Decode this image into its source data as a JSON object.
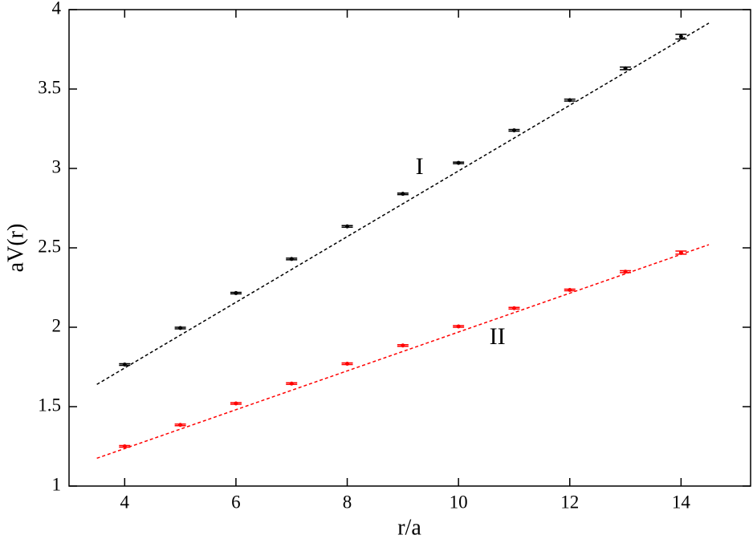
{
  "chart_data": {
    "type": "scatter",
    "xlabel": "r/a",
    "ylabel": "aV(r)",
    "xlim": [
      3,
      15.25
    ],
    "ylim": [
      1,
      4
    ],
    "xticks": [
      4,
      6,
      8,
      10,
      12,
      14
    ],
    "yticks": [
      1,
      1.5,
      2,
      2.5,
      3,
      3.5,
      4
    ],
    "series": [
      {
        "name": "I",
        "color": "#000000",
        "x": [
          4,
          5,
          6,
          7,
          8,
          9,
          10,
          11,
          12,
          13,
          14
        ],
        "values": [
          1.765,
          1.995,
          2.215,
          2.43,
          2.635,
          2.84,
          3.035,
          3.24,
          3.43,
          3.63,
          3.83
        ],
        "errors": [
          0.005,
          0.005,
          0.005,
          0.005,
          0.005,
          0.005,
          0.005,
          0.005,
          0.006,
          0.008,
          0.015
        ],
        "fit": {
          "x": [
            3.5,
            14.5
          ],
          "values": [
            1.64,
            3.915
          ]
        },
        "label_at": {
          "x": 9.3,
          "y": 3.0
        }
      },
      {
        "name": "II",
        "color": "#ff0000",
        "x": [
          4,
          5,
          6,
          7,
          8,
          9,
          10,
          11,
          12,
          13,
          14
        ],
        "values": [
          1.25,
          1.385,
          1.52,
          1.645,
          1.77,
          1.885,
          2.005,
          2.12,
          2.235,
          2.35,
          2.47
        ],
        "errors": [
          0.005,
          0.005,
          0.005,
          0.005,
          0.005,
          0.005,
          0.005,
          0.005,
          0.005,
          0.006,
          0.01
        ],
        "fit": {
          "x": [
            3.5,
            14.5
          ],
          "values": [
            1.175,
            2.52
          ]
        },
        "label_at": {
          "x": 10.7,
          "y": 1.93
        }
      }
    ]
  }
}
